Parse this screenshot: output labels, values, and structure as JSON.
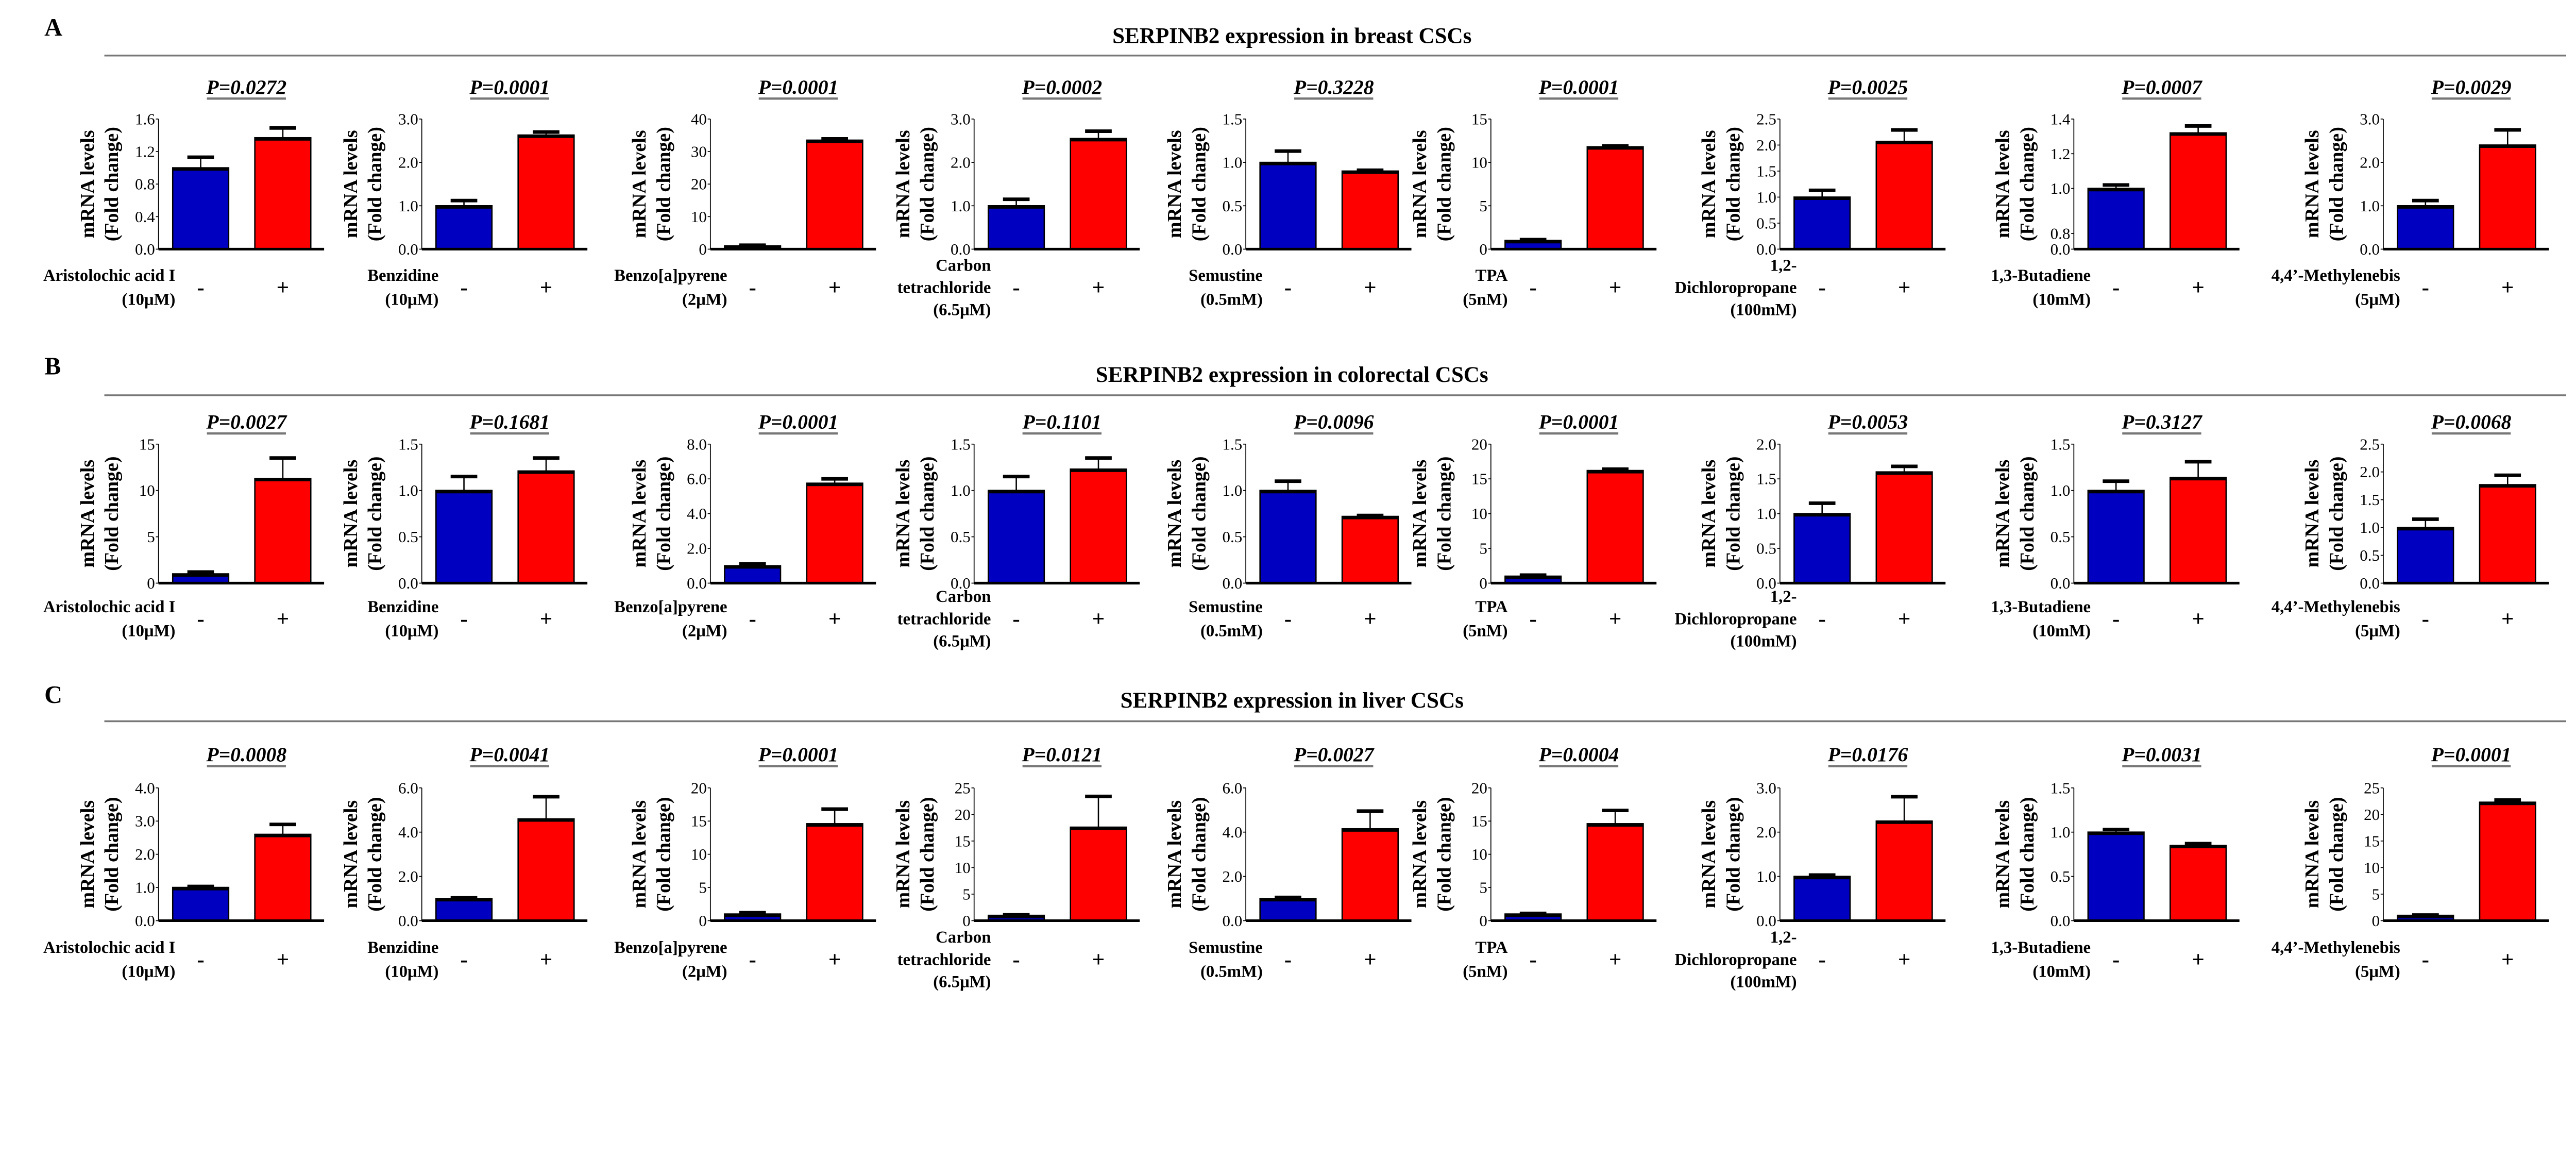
{
  "chart_data": {
    "type": "bar",
    "ylabel": [
      "mRNA levels",
      "(Fold change)"
    ],
    "categories": [
      "-",
      "+"
    ],
    "series_colors": {
      "control": "#0000C0",
      "treated": "#FF0000"
    },
    "treatments": [
      [
        "Aristolochic acid I",
        "(10μM)"
      ],
      [
        "Benzidine",
        "(10μM)"
      ],
      [
        "Benzo[a]pyrene",
        "(2μM)"
      ],
      [
        "Carbon",
        "tetrachloride",
        "(6.5μM)"
      ],
      [
        "Semustine",
        "(0.5mM)"
      ],
      [
        "TPA",
        "(5nM)"
      ],
      [
        "1,2-",
        "Dichloropropane",
        "(100mM)"
      ],
      [
        "1,3-Butadiene",
        "(10mM)"
      ],
      [
        "4,4’-Methylenebis",
        "(5μM)"
      ]
    ],
    "rows": [
      {
        "label": "A",
        "title": "SERPINB2 expression in breast CSCs",
        "panels": [
          {
            "p": "P=0.0272",
            "ylim": [
              0,
              1.6
            ],
            "ticks": [
              "0.0",
              "0.4",
              "0.8",
              "1.2",
              "1.6"
            ],
            "values": [
              1.0,
              1.37
            ],
            "errors": [
              0.13,
              0.12
            ]
          },
          {
            "p": "P=0.0001",
            "ylim": [
              0,
              3.0
            ],
            "ticks": [
              "0.0",
              "1.0",
              "2.0",
              "3.0"
            ],
            "values": [
              1.0,
              2.63
            ],
            "errors": [
              0.12,
              0.07
            ]
          },
          {
            "p": "P=0.0001",
            "ylim": [
              0,
              40
            ],
            "ticks": [
              "0",
              "10",
              "20",
              "30",
              "40"
            ],
            "values": [
              1.0,
              33.5
            ],
            "errors": [
              0.2,
              0.4
            ]
          },
          {
            "p": "P=0.0002",
            "ylim": [
              0,
              3.0
            ],
            "ticks": [
              "0.0",
              "1.0",
              "2.0",
              "3.0"
            ],
            "values": [
              1.0,
              2.55
            ],
            "errors": [
              0.15,
              0.17
            ]
          },
          {
            "p": "P=0.3228",
            "ylim": [
              0,
              1.5
            ],
            "ticks": [
              "0.0",
              "0.5",
              "1.0",
              "1.5"
            ],
            "values": [
              1.0,
              0.9
            ],
            "errors": [
              0.13,
              0.01
            ]
          },
          {
            "p": "P=0.0001",
            "ylim": [
              0,
              15
            ],
            "ticks": [
              "0",
              "5",
              "10",
              "15"
            ],
            "values": [
              1.0,
              11.8
            ],
            "errors": [
              0.1,
              0.1
            ]
          },
          {
            "p": "P=0.0025",
            "ylim": [
              0,
              2.5
            ],
            "ticks": [
              "0.0",
              "0.5",
              "1.0",
              "1.5",
              "2.0",
              "2.5"
            ],
            "values": [
              1.0,
              2.07
            ],
            "errors": [
              0.13,
              0.22
            ]
          },
          {
            "p": "P=0.0007",
            "ylim": [
              0,
              1.4
            ],
            "ticks": [
              "0.0",
              "0.8",
              "1.0",
              "1.2",
              "1.4"
            ],
            "values": [
              1.0,
              1.32
            ],
            "errors": [
              0.02,
              0.04
            ],
            "axis_break_between": [
              0.0,
              0.8
            ]
          },
          {
            "p": "P=0.0029",
            "ylim": [
              0,
              3.0
            ],
            "ticks": [
              "0.0",
              "1.0",
              "2.0",
              "3.0"
            ],
            "values": [
              1.0,
              2.4
            ],
            "errors": [
              0.12,
              0.35
            ]
          }
        ]
      },
      {
        "label": "B",
        "title": "SERPINB2 expression in colorectal CSCs",
        "panels": [
          {
            "p": "P=0.0027",
            "ylim": [
              0,
              15
            ],
            "ticks": [
              "0",
              "5",
              "10",
              "15"
            ],
            "values": [
              1.0,
              11.3
            ],
            "errors": [
              0.2,
              2.2
            ]
          },
          {
            "p": "P=0.1681",
            "ylim": [
              0,
              1.5
            ],
            "ticks": [
              "0.0",
              "0.5",
              "1.0",
              "1.5"
            ],
            "values": [
              1.0,
              1.21
            ],
            "errors": [
              0.15,
              0.14
            ]
          },
          {
            "p": "P=0.0001",
            "ylim": [
              0,
              8.0
            ],
            "ticks": [
              "0.0",
              "2.0",
              "4.0",
              "6.0",
              "8.0"
            ],
            "values": [
              1.0,
              5.75
            ],
            "errors": [
              0.1,
              0.25
            ]
          },
          {
            "p": "P=0.1101",
            "ylim": [
              0,
              1.5
            ],
            "ticks": [
              "0.0",
              "0.5",
              "1.0",
              "1.5"
            ],
            "values": [
              1.0,
              1.23
            ],
            "errors": [
              0.15,
              0.12
            ]
          },
          {
            "p": "P=0.0096",
            "ylim": [
              0,
              1.5
            ],
            "ticks": [
              "0.0",
              "0.5",
              "1.0",
              "1.5"
            ],
            "values": [
              1.0,
              0.72
            ],
            "errors": [
              0.1,
              0.01
            ]
          },
          {
            "p": "P=0.0001",
            "ylim": [
              0,
              20
            ],
            "ticks": [
              "0",
              "5",
              "10",
              "15",
              "20"
            ],
            "values": [
              1.0,
              16.2
            ],
            "errors": [
              0.15,
              0.2
            ]
          },
          {
            "p": "P=0.0053",
            "ylim": [
              0,
              2.0
            ],
            "ticks": [
              "0.0",
              "0.5",
              "1.0",
              "1.5",
              "2.0"
            ],
            "values": [
              1.0,
              1.6
            ],
            "errors": [
              0.15,
              0.08
            ]
          },
          {
            "p": "P=0.3127",
            "ylim": [
              0,
              1.5
            ],
            "ticks": [
              "0.0",
              "0.5",
              "1.0",
              "1.5"
            ],
            "values": [
              1.0,
              1.14
            ],
            "errors": [
              0.1,
              0.17
            ]
          },
          {
            "p": "P=0.0068",
            "ylim": [
              0,
              2.5
            ],
            "ticks": [
              "0.0",
              "0.5",
              "1.0",
              "1.5",
              "2.0",
              "2.5"
            ],
            "values": [
              1.0,
              1.77
            ],
            "errors": [
              0.15,
              0.17
            ]
          }
        ]
      },
      {
        "label": "C",
        "title": "SERPINB2 expression in liver CSCs",
        "panels": [
          {
            "p": "P=0.0008",
            "ylim": [
              0,
              4.0
            ],
            "ticks": [
              "0.0",
              "1.0",
              "2.0",
              "3.0",
              "4.0"
            ],
            "values": [
              1.0,
              2.6
            ],
            "errors": [
              0.03,
              0.3
            ]
          },
          {
            "p": "P=0.0041",
            "ylim": [
              0,
              6.0
            ],
            "ticks": [
              "0.0",
              "2.0",
              "4.0",
              "6.0"
            ],
            "values": [
              1.0,
              4.6
            ],
            "errors": [
              0.03,
              1.0
            ]
          },
          {
            "p": "P=0.0001",
            "ylim": [
              0,
              20
            ],
            "ticks": [
              "0",
              "5",
              "10",
              "15",
              "20"
            ],
            "values": [
              1.0,
              14.6
            ],
            "errors": [
              0.2,
              2.2
            ]
          },
          {
            "p": "P=0.0121",
            "ylim": [
              0,
              25
            ],
            "ticks": [
              "0",
              "5",
              "10",
              "15",
              "20",
              "25"
            ],
            "values": [
              1.0,
              17.6
            ],
            "errors": [
              0.1,
              5.8
            ]
          },
          {
            "p": "P=0.0027",
            "ylim": [
              0,
              6.0
            ],
            "ticks": [
              "0.0",
              "2.0",
              "4.0",
              "6.0"
            ],
            "values": [
              1.0,
              4.15
            ],
            "errors": [
              0.05,
              0.8
            ]
          },
          {
            "p": "P=0.0004",
            "ylim": [
              0,
              20
            ],
            "ticks": [
              "0",
              "5",
              "10",
              "15",
              "20"
            ],
            "values": [
              1.0,
              14.6
            ],
            "errors": [
              0.1,
              2.0
            ]
          },
          {
            "p": "P=0.0176",
            "ylim": [
              0,
              3.0
            ],
            "ticks": [
              "0.0",
              "1.0",
              "2.0",
              "3.0"
            ],
            "values": [
              1.0,
              2.25
            ],
            "errors": [
              0.03,
              0.55
            ]
          },
          {
            "p": "P=0.0031",
            "ylim": [
              0,
              1.5
            ],
            "ticks": [
              "0.0",
              "0.5",
              "1.0",
              "1.5"
            ],
            "values": [
              1.0,
              0.85
            ],
            "errors": [
              0.03,
              0.02
            ]
          },
          {
            "p": "P=0.0001",
            "ylim": [
              0,
              25
            ],
            "ticks": [
              "0",
              "5",
              "10",
              "15",
              "20",
              "25"
            ],
            "values": [
              1.0,
              22.3
            ],
            "errors": [
              0.05,
              0.4
            ]
          }
        ]
      }
    ]
  }
}
